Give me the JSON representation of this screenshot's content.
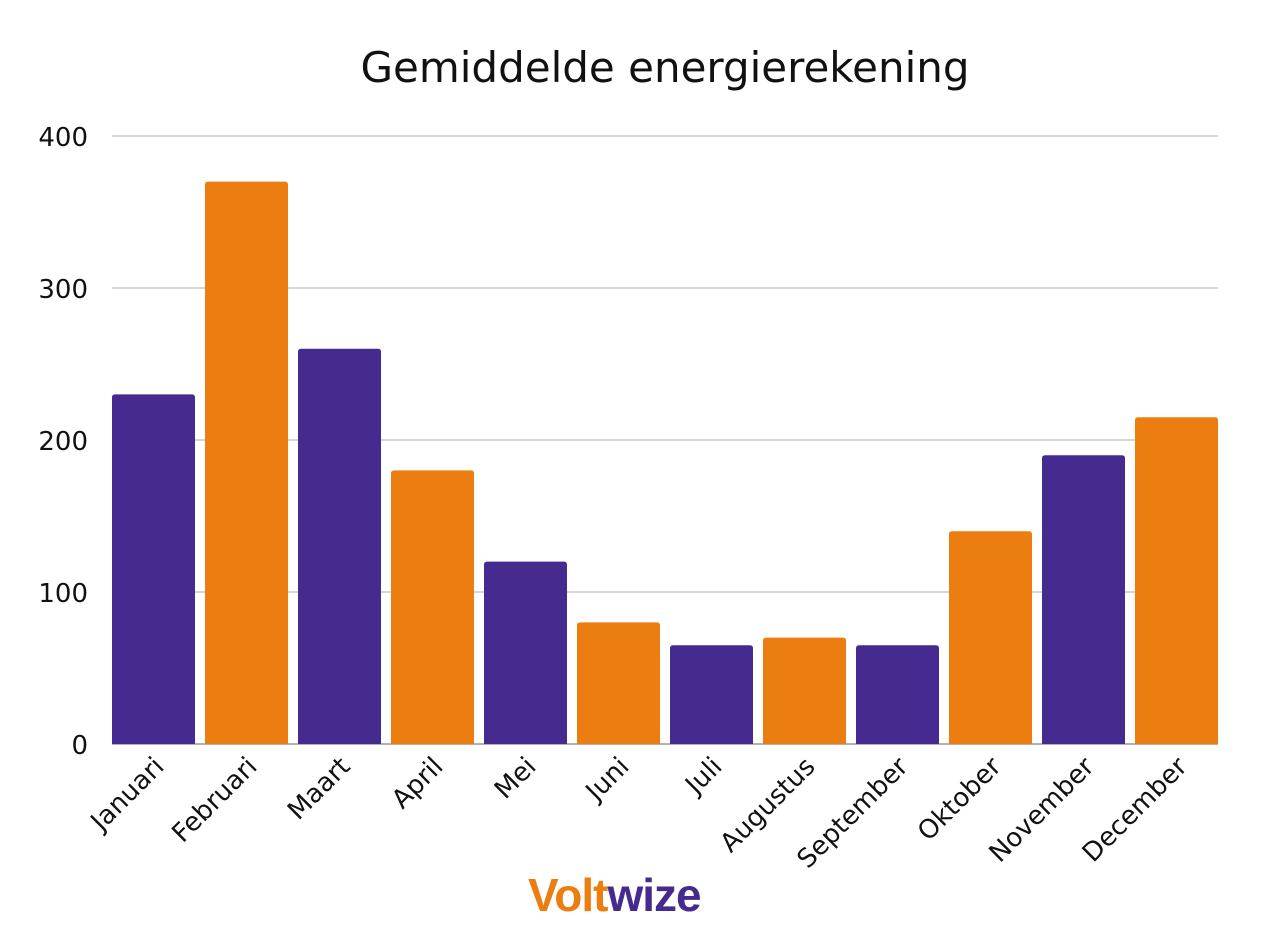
{
  "chart_data": {
    "type": "bar",
    "title": "Gemiddelde energierekening",
    "xlabel": "",
    "ylabel": "",
    "categories": [
      "Januari",
      "Februari",
      "Maart",
      "April",
      "Mei",
      "Juni",
      "Juli",
      "Augustus",
      "September",
      "Oktober",
      "November",
      "December"
    ],
    "values": [
      230,
      370,
      260,
      180,
      120,
      80,
      65,
      70,
      65,
      140,
      190,
      215
    ],
    "ylim": [
      0,
      400
    ],
    "yticks": [
      0,
      100,
      200,
      300,
      400
    ],
    "grid": true,
    "colors": [
      "#452a90",
      "#ec7d10"
    ]
  },
  "logo": {
    "part1": "Volt",
    "part2": "wize"
  }
}
